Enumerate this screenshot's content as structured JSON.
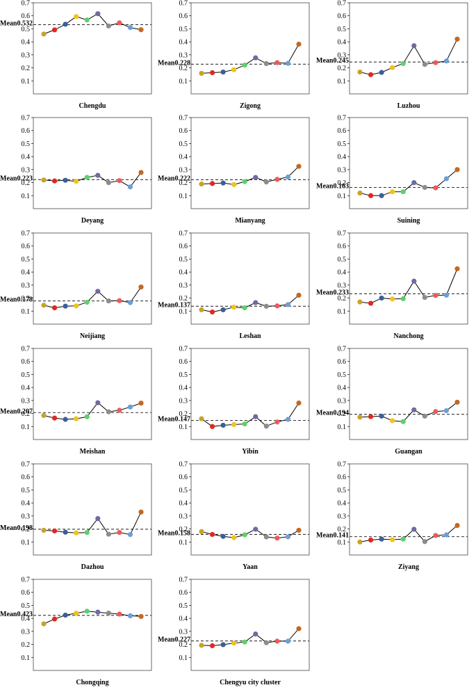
{
  "figure_title": "",
  "colors": {
    "point_colors": [
      "#c9a227",
      "#e0281f",
      "#3a5f99",
      "#f2c318",
      "#5cd16a",
      "#6e6aa3",
      "#8c8c8c",
      "#ee5a5a",
      "#6c9fd6",
      "#c46820"
    ],
    "line": "#000000",
    "mean_line": "#333333",
    "axis": "#444444"
  },
  "chart_data": [
    {
      "type": "line",
      "title": "Chengdu",
      "mean_label": "Mean0.532",
      "mean": 0.532,
      "ylim": [
        0,
        0.7
      ],
      "values": [
        0.46,
        0.492,
        0.535,
        0.594,
        0.568,
        0.616,
        0.522,
        0.546,
        0.51,
        0.493
      ]
    },
    {
      "type": "line",
      "title": "Zigong",
      "mean_label": "Mean0.228",
      "mean": 0.228,
      "ylim": [
        0,
        0.7
      ],
      "values": [
        0.158,
        0.163,
        0.168,
        0.186,
        0.221,
        0.277,
        0.233,
        0.24,
        0.235,
        0.382
      ]
    },
    {
      "type": "line",
      "title": "Luzhou",
      "mean_label": "Mean0.245",
      "mean": 0.245,
      "ylim": [
        0,
        0.7
      ],
      "values": [
        0.168,
        0.148,
        0.165,
        0.202,
        0.233,
        0.37,
        0.227,
        0.24,
        0.253,
        0.421
      ]
    },
    {
      "type": "line",
      "title": "Deyang",
      "mean_label": "Mean0.223",
      "mean": 0.223,
      "ylim": [
        0,
        0.7
      ],
      "values": [
        0.22,
        0.213,
        0.218,
        0.21,
        0.24,
        0.256,
        0.2,
        0.215,
        0.167,
        0.278
      ]
    },
    {
      "type": "line",
      "title": "Mianyang",
      "mean_label": "Mean0.222",
      "mean": 0.222,
      "ylim": [
        0,
        0.7
      ],
      "values": [
        0.189,
        0.193,
        0.197,
        0.185,
        0.208,
        0.24,
        0.205,
        0.225,
        0.243,
        0.325
      ]
    },
    {
      "type": "line",
      "title": "Suining",
      "mean_label": "Mean0.163",
      "mean": 0.163,
      "ylim": [
        0,
        0.7
      ],
      "values": [
        0.12,
        0.1,
        0.1,
        0.13,
        0.13,
        0.2,
        0.163,
        0.16,
        0.23,
        0.3
      ]
    },
    {
      "type": "line",
      "title": "Neijiang",
      "mean_label": "Mean0.178",
      "mean": 0.178,
      "ylim": [
        0,
        0.7
      ],
      "values": [
        0.145,
        0.125,
        0.138,
        0.14,
        0.168,
        0.252,
        0.178,
        0.18,
        0.165,
        0.285
      ]
    },
    {
      "type": "line",
      "title": "Leshan",
      "mean_label": "Mean0.137",
      "mean": 0.137,
      "ylim": [
        0,
        0.7
      ],
      "values": [
        0.11,
        0.093,
        0.11,
        0.13,
        0.125,
        0.165,
        0.137,
        0.14,
        0.15,
        0.222
      ]
    },
    {
      "type": "line",
      "title": "Nanchong",
      "mean_label": "Mean0.233",
      "mean": 0.233,
      "ylim": [
        0,
        0.7
      ],
      "values": [
        0.17,
        0.16,
        0.2,
        0.193,
        0.195,
        0.33,
        0.205,
        0.22,
        0.222,
        0.425
      ]
    },
    {
      "type": "line",
      "title": "Meishan",
      "mean_label": "Mean0.207",
      "mean": 0.207,
      "ylim": [
        0,
        0.7
      ],
      "values": [
        0.185,
        0.165,
        0.155,
        0.16,
        0.175,
        0.283,
        0.213,
        0.225,
        0.25,
        0.28
      ]
    },
    {
      "type": "line",
      "title": "Yibin",
      "mean_label": "Mean0.147",
      "mean": 0.147,
      "ylim": [
        0,
        0.7
      ],
      "values": [
        0.16,
        0.1,
        0.11,
        0.115,
        0.12,
        0.176,
        0.103,
        0.135,
        0.155,
        0.281
      ]
    },
    {
      "type": "line",
      "title": "Guangan",
      "mean_label": "Mean0.194",
      "mean": 0.194,
      "ylim": [
        0,
        0.7
      ],
      "values": [
        0.172,
        0.176,
        0.18,
        0.145,
        0.138,
        0.228,
        0.18,
        0.215,
        0.222,
        0.287
      ]
    },
    {
      "type": "line",
      "title": "Dazhou",
      "mean_label": "Mean0.198",
      "mean": 0.198,
      "ylim": [
        0,
        0.7
      ],
      "values": [
        0.19,
        0.185,
        0.175,
        0.17,
        0.173,
        0.28,
        0.16,
        0.173,
        0.157,
        0.33
      ]
    },
    {
      "type": "line",
      "title": "Yaan",
      "mean_label": "Mean0.158",
      "mean": 0.158,
      "ylim": [
        0,
        0.7
      ],
      "values": [
        0.18,
        0.158,
        0.143,
        0.133,
        0.155,
        0.198,
        0.139,
        0.13,
        0.14,
        0.19
      ]
    },
    {
      "type": "line",
      "title": "Ziyang",
      "mean_label": "Mean0.141",
      "mean": 0.141,
      "ylim": [
        0,
        0.7
      ],
      "values": [
        0.1,
        0.115,
        0.122,
        0.118,
        0.122,
        0.198,
        0.103,
        0.15,
        0.155,
        0.227
      ]
    },
    {
      "type": "line",
      "title": "Chongqing",
      "mean_label": "Mean0.423",
      "mean": 0.423,
      "ylim": [
        0,
        0.7
      ],
      "values": [
        0.358,
        0.395,
        0.425,
        0.44,
        0.455,
        0.448,
        0.44,
        0.433,
        0.42,
        0.415
      ]
    },
    {
      "type": "line",
      "title": "Chengyu city cluster",
      "mean_label": "Mean0.227",
      "mean": 0.227,
      "ylim": [
        0,
        0.7
      ],
      "values": [
        0.193,
        0.19,
        0.198,
        0.21,
        0.218,
        0.28,
        0.213,
        0.225,
        0.225,
        0.321
      ]
    }
  ]
}
